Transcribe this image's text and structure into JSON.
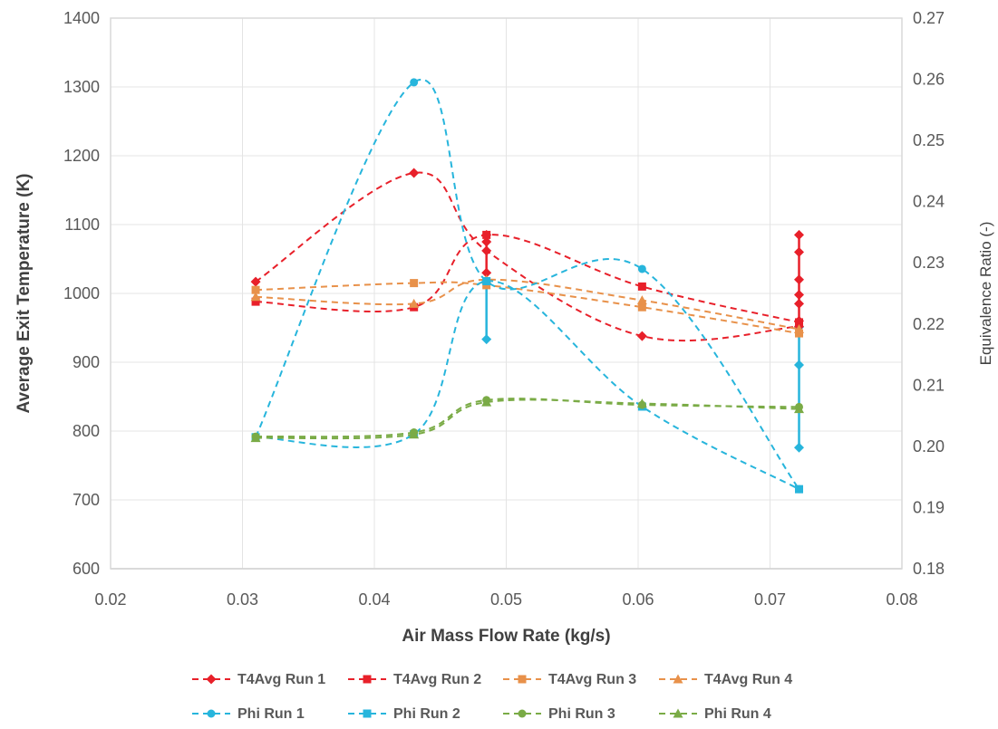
{
  "chart_data": {
    "type": "scatter",
    "xlabel": "Air Mass Flow Rate (kg/s)",
    "ylabel": "Average Exit Temperature (K)",
    "y2label": "Equivalence Ratio (-)",
    "xlim": [
      0.02,
      0.08
    ],
    "ylim": [
      600,
      1400
    ],
    "y2lim": [
      0.18,
      0.27
    ],
    "x_ticks": [
      "0.02",
      "0.03",
      "0.04",
      "0.05",
      "0.06",
      "0.07",
      "0.08"
    ],
    "y_ticks": [
      "600",
      "700",
      "800",
      "900",
      "1000",
      "1100",
      "1200",
      "1300",
      "1400"
    ],
    "y2_ticks": [
      "0.18",
      "0.19",
      "0.20",
      "0.21",
      "0.22",
      "0.23",
      "0.24",
      "0.25",
      "0.26",
      "0.27"
    ],
    "grid": true,
    "legend_position": "bottom",
    "series": [
      {
        "name": "T4Avg Run 1",
        "axis": "left",
        "color": "#e8202a",
        "marker": "diamond",
        "x": [
          0.031,
          0.043,
          0.0485,
          0.0603,
          0.0722
        ],
        "y": [
          1017,
          1175,
          1062,
          938,
          952
        ]
      },
      {
        "name": "T4Avg Run 2",
        "axis": "left",
        "color": "#e8202a",
        "marker": "square",
        "x": [
          0.031,
          0.043,
          0.0485,
          0.0603,
          0.0722
        ],
        "y": [
          988,
          980,
          1085,
          1010,
          958
        ]
      },
      {
        "name": "T4Avg Run 3",
        "axis": "left",
        "color": "#e8914a",
        "marker": "square",
        "x": [
          0.031,
          0.043,
          0.0485,
          0.0603,
          0.0722
        ],
        "y": [
          1005,
          1015,
          1012,
          980,
          942
        ]
      },
      {
        "name": "T4Avg Run 4",
        "axis": "left",
        "color": "#e8914a",
        "marker": "triangle",
        "x": [
          0.031,
          0.043,
          0.0485,
          0.0603,
          0.0722
        ],
        "y": [
          995,
          985,
          1020,
          990,
          948
        ]
      },
      {
        "name": "Phi Run 1",
        "axis": "right",
        "color": "#27b5dc",
        "marker": "circle",
        "x": [
          0.031,
          0.043,
          0.0485,
          0.0603,
          0.0722
        ],
        "y": [
          0.2015,
          0.2595,
          0.227,
          0.229,
          0.193
        ]
      },
      {
        "name": "Phi Run 2",
        "axis": "right",
        "color": "#27b5dc",
        "marker": "square",
        "x": [
          0.031,
          0.043,
          0.0485,
          0.0603,
          0.0722
        ],
        "y": [
          0.2015,
          0.202,
          0.227,
          0.2065,
          0.193
        ]
      },
      {
        "name": "Phi Run 3",
        "axis": "left",
        "color": "#7aab46",
        "marker": "circle",
        "x": [
          0.031,
          0.043,
          0.0485,
          0.0603,
          0.0722
        ],
        "y": [
          792,
          798,
          845,
          838,
          835
        ]
      },
      {
        "name": "Phi Run 4",
        "axis": "left",
        "color": "#7aab46",
        "marker": "triangle",
        "x": [
          0.031,
          0.043,
          0.0485,
          0.0603,
          0.0722
        ],
        "y": [
          790,
          795,
          842,
          840,
          832
        ]
      }
    ],
    "vertical_spreads": [
      {
        "x": 0.0722,
        "axis": "left",
        "color": "#e8202a",
        "y": [
          1085,
          1060,
          1020,
          998,
          985,
          960
        ]
      },
      {
        "x": 0.0722,
        "axis": "right",
        "color": "#27b5dc",
        "y": [
          0.1998,
          0.2133,
          0.2195
        ]
      },
      {
        "x": 0.0485,
        "axis": "left",
        "color": "#e8202a",
        "y": [
          1085,
          1075,
          1030
        ]
      },
      {
        "x": 0.0485,
        "axis": "right",
        "color": "#27b5dc",
        "y": [
          0.2175,
          0.227
        ]
      }
    ]
  }
}
